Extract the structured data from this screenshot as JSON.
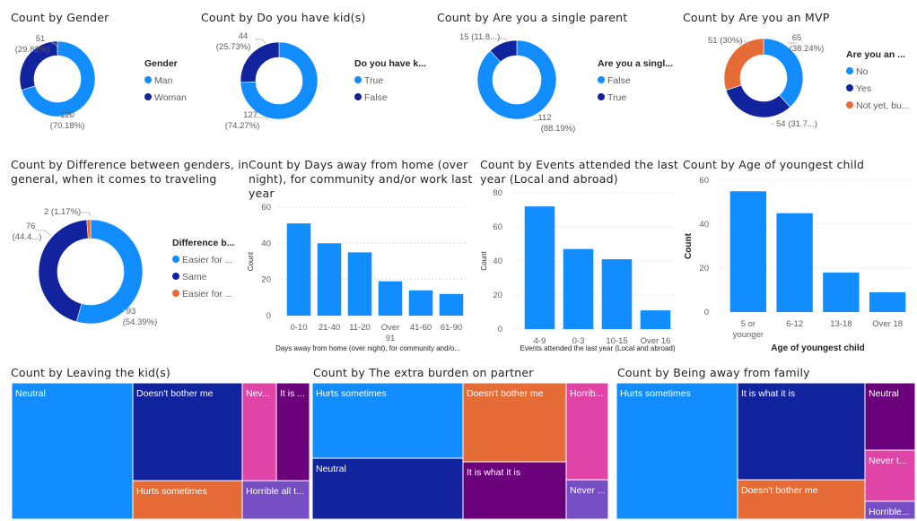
{
  "colors": {
    "blue": "#118DFF",
    "navy": "#12239E",
    "orange": "#E66C37",
    "purple": "#6B007B",
    "pink": "#E044A7",
    "violet": "#744EC2"
  },
  "chart_data": [
    {
      "id": "gender",
      "type": "pie",
      "variant": "donut",
      "title": "Count by Gender",
      "legend_title": "Gender",
      "legend_position": "right",
      "slices": [
        {
          "label": "Man",
          "value": 120,
          "percent_label": "(70.18%)",
          "value_label": "120",
          "color": "#118DFF"
        },
        {
          "label": "Woman",
          "value": 51,
          "percent_label": "(29.82%)",
          "value_label": "51",
          "color": "#12239E"
        }
      ]
    },
    {
      "id": "kids",
      "type": "pie",
      "variant": "donut",
      "title": "Count by Do you have kid(s)",
      "legend_title": "Do you have k...",
      "legend_position": "right",
      "slices": [
        {
          "label": "True",
          "value": 127,
          "percent_label": "(74.27%)",
          "value_label": "127",
          "color": "#118DFF"
        },
        {
          "label": "False",
          "value": 44,
          "percent_label": "(25.73%)",
          "value_label": "44",
          "color": "#12239E"
        }
      ]
    },
    {
      "id": "single_parent",
      "type": "pie",
      "variant": "donut",
      "title": "Count by Are you a single parent",
      "legend_title": "Are you a singl...",
      "legend_position": "right",
      "slices": [
        {
          "label": "False",
          "value": 112,
          "percent_label": "(88.19%)",
          "value_label": "112",
          "color": "#118DFF"
        },
        {
          "label": "True",
          "value": 15,
          "percent_label": "(11.8...)",
          "value_label": "15",
          "color": "#12239E"
        }
      ]
    },
    {
      "id": "mvp",
      "type": "pie",
      "variant": "donut",
      "title": "Count by Are you an MVP",
      "legend_title": "Are you an ...",
      "legend_position": "right",
      "slices": [
        {
          "label": "No",
          "value": 65,
          "percent_label": "(38.24%)",
          "value_label": "65",
          "color": "#118DFF"
        },
        {
          "label": "Yes",
          "value": 54,
          "percent_label": "(31.7...)",
          "value_label": "54",
          "color": "#12239E"
        },
        {
          "label": "Not yet, bu...",
          "value": 51,
          "percent_label": "(30%)",
          "value_label": "51",
          "color": "#E66C37"
        }
      ]
    },
    {
      "id": "gender_diff",
      "type": "pie",
      "variant": "donut",
      "title": "Count by Difference between genders, in general, when it comes to traveling",
      "title_lines": [
        "Count by Difference between genders, in",
        "general, when it comes to traveling"
      ],
      "legend_title": "Difference b...",
      "legend_position": "right",
      "slices": [
        {
          "label": "Easier for ...",
          "value": 93,
          "percent_label": "(54.39%)",
          "value_label": "93",
          "color": "#118DFF"
        },
        {
          "label": "Same",
          "value": 76,
          "percent_label": "(44.4...)",
          "value_label": "76",
          "color": "#12239E"
        },
        {
          "label": "Easier for ...",
          "value": 2,
          "percent_label": "(1.17%)",
          "value_label": "2",
          "color": "#E66C37"
        }
      ]
    },
    {
      "id": "days_away",
      "type": "bar",
      "title": "Count by Days away from home (over night), for community and/or work last year",
      "title_lines": [
        "Count by Days away from home (over",
        "night), for community and/or work last",
        "year"
      ],
      "categories": [
        "0-10",
        "21-40",
        "11-20",
        "Over 91",
        "41-60",
        "61-90"
      ],
      "category_lines": [
        [
          "0-10"
        ],
        [
          "21-40"
        ],
        [
          "11-20"
        ],
        [
          "Over",
          "91"
        ],
        [
          "41-60"
        ],
        [
          "61-90"
        ]
      ],
      "values": [
        51,
        40,
        35,
        19,
        14,
        12
      ],
      "xlabel": "Days away from home (over night), for community and/o...",
      "ylabel": "Count",
      "ylim": [
        0,
        60
      ],
      "yticks": [
        0,
        20,
        40,
        60
      ],
      "grid": true,
      "color": "#118DFF"
    },
    {
      "id": "events",
      "type": "bar",
      "title": "Count by Events attended the last year (Local and abroad)",
      "title_lines": [
        "Count by Events attended the last",
        "year (Local and abroad)"
      ],
      "categories": [
        "4-9",
        "0-3",
        "10-15",
        "Over 16"
      ],
      "category_lines": [
        [
          "4-9"
        ],
        [
          "0-3"
        ],
        [
          "10-15"
        ],
        [
          "Over 16"
        ]
      ],
      "values": [
        72,
        47,
        41,
        11
      ],
      "xlabel": "Events attended the last year (Local and abroad)",
      "ylabel": "Count",
      "ylim": [
        0,
        80
      ],
      "yticks": [
        0,
        20,
        40,
        60,
        80
      ],
      "grid": true,
      "color": "#118DFF"
    },
    {
      "id": "youngest",
      "type": "bar",
      "title": "Count by Age of youngest child",
      "title_lines": [
        "Count by Age of youngest child"
      ],
      "categories": [
        "5 or younger",
        "6-12",
        "13-18",
        "Over 18"
      ],
      "category_lines": [
        [
          "5 or",
          "younger"
        ],
        [
          "6-12"
        ],
        [
          "13-18"
        ],
        [
          "Over 18"
        ]
      ],
      "values": [
        55,
        45,
        18,
        9
      ],
      "xlabel": "Age of youngest child",
      "ylabel": "Count",
      "ylim": [
        0,
        60
      ],
      "yticks": [
        0,
        20,
        40,
        60
      ],
      "grid": true,
      "color": "#118DFF"
    },
    {
      "id": "leaving_kids",
      "type": "treemap",
      "title": "Count by Leaving the kid(s)",
      "items": [
        {
          "label": "Neutral",
          "value": 43,
          "color": "#118DFF"
        },
        {
          "label": "Doesn't bother me",
          "value": 29,
          "color": "#12239E"
        },
        {
          "label": "Hurts sometimes",
          "value": 11,
          "color": "#E66C37"
        },
        {
          "label": "Nev...",
          "value": 7,
          "color": "#E044A7"
        },
        {
          "label": "It is ...",
          "value": 6,
          "color": "#6B007B"
        },
        {
          "label": "Horrible all t...",
          "value": 5,
          "color": "#744EC2"
        }
      ]
    },
    {
      "id": "extra_burden",
      "type": "treemap",
      "title": "Count by The extra burden on partner",
      "items": [
        {
          "label": "Hurts sometimes",
          "value": 40,
          "color": "#118DFF"
        },
        {
          "label": "Neutral",
          "value": 32,
          "color": "#12239E"
        },
        {
          "label": "Doesn't bother me",
          "value": 28,
          "color": "#E66C37"
        },
        {
          "label": "It is what it is",
          "value": 19,
          "color": "#6B007B"
        },
        {
          "label": "Horrib...",
          "value": 13,
          "color": "#E044A7"
        },
        {
          "label": "Never ...",
          "value": 5,
          "color": "#744EC2"
        }
      ]
    },
    {
      "id": "away_family",
      "type": "treemap",
      "title": "Count by Being away from family",
      "items": [
        {
          "label": "Hurts sometimes",
          "value": 59,
          "color": "#118DFF"
        },
        {
          "label": "It is what it is",
          "value": 41,
          "color": "#12239E"
        },
        {
          "label": "Doesn't bother me",
          "value": 17,
          "color": "#E66C37"
        },
        {
          "label": "Neutral",
          "value": 12,
          "color": "#6B007B"
        },
        {
          "label": "Never t...",
          "value": 8,
          "color": "#E044A7"
        },
        {
          "label": "Horrible...",
          "value": 3,
          "color": "#744EC2"
        }
      ]
    }
  ]
}
